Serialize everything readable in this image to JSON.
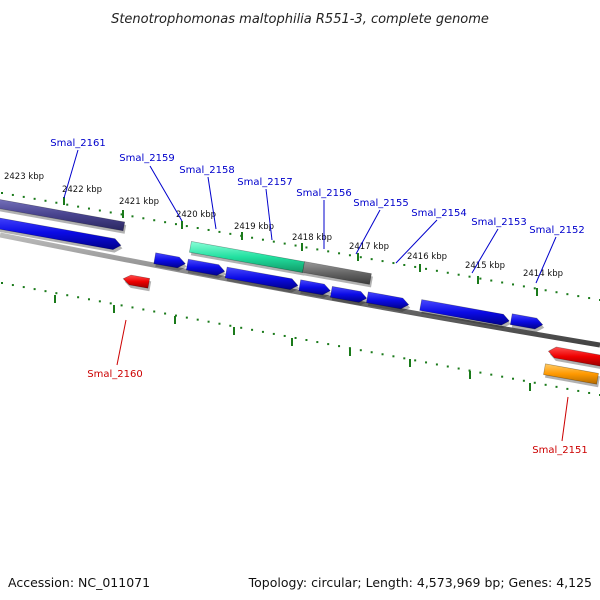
{
  "title": "Stenotrophomonas maltophilia R551-3, complete genome",
  "footer": {
    "accession": "Accession: NC_011071",
    "summary": "Topology: circular; Length: 4,573,969 bp; Genes: 4,125"
  },
  "ticks": [
    "2423 kbp",
    "2422 kbp",
    "2421 kbp",
    "2420 kbp",
    "2419 kbp",
    "2418 kbp",
    "2417 kbp",
    "2416 kbp",
    "2415 kbp",
    "2414 kbp"
  ],
  "genes_top": [
    {
      "name": "Smal_2161",
      "color": "#0000cc"
    },
    {
      "name": "Smal_2159",
      "color": "#0000cc"
    },
    {
      "name": "Smal_2158",
      "color": "#0000cc"
    },
    {
      "name": "Smal_2157",
      "color": "#0000cc"
    },
    {
      "name": "Smal_2156",
      "color": "#0000cc"
    },
    {
      "name": "Smal_2155",
      "color": "#0000cc"
    },
    {
      "name": "Smal_2154",
      "color": "#0000cc"
    },
    {
      "name": "Smal_2153",
      "color": "#0000cc"
    },
    {
      "name": "Smal_2152",
      "color": "#0000cc"
    }
  ],
  "genes_bottom": [
    {
      "name": "Smal_2160",
      "color": "#cc0000"
    },
    {
      "name": "Smal_2151",
      "color": "#cc0000"
    }
  ],
  "colors": {
    "forward_cds": "#0b0be6",
    "reverse_cds": "#ee0000",
    "feature_teal": "#22e0a0",
    "feature_gray": "#666666",
    "feature_purple": "#4a4590",
    "feature_orange": "#ff9900",
    "tick": "#1a7a1a",
    "backbone": "#777777"
  }
}
